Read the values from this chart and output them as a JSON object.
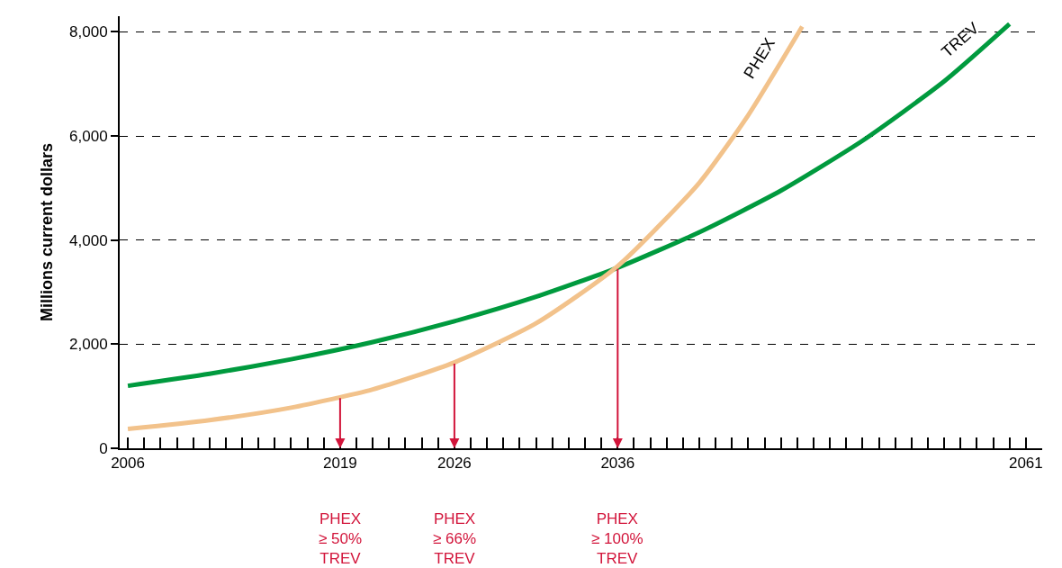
{
  "chart_data": {
    "type": "line",
    "ylabel": "Millions current dollars",
    "xlim": [
      2005.5,
      2062
    ],
    "ylim": [
      0,
      8300
    ],
    "xticks": [
      2006,
      {
        "value": 2007,
        "label": null
      },
      {
        "value": 2008,
        "label": null
      },
      {
        "value": 2009,
        "label": null
      },
      {
        "value": 2010,
        "label": null
      },
      {
        "value": 2011,
        "label": null
      },
      {
        "value": 2012,
        "label": null
      },
      {
        "value": 2013,
        "label": null
      },
      {
        "value": 2014,
        "label": null
      },
      {
        "value": 2015,
        "label": null
      },
      {
        "value": 2016,
        "label": null
      },
      {
        "value": 2017,
        "label": null
      },
      {
        "value": 2018,
        "label": null
      },
      2019,
      {
        "value": 2020,
        "label": null
      },
      {
        "value": 2021,
        "label": null
      },
      {
        "value": 2022,
        "label": null
      },
      {
        "value": 2023,
        "label": null
      },
      {
        "value": 2024,
        "label": null
      },
      {
        "value": 2025,
        "label": null
      },
      2026,
      {
        "value": 2027,
        "label": null
      },
      {
        "value": 2028,
        "label": null
      },
      {
        "value": 2029,
        "label": null
      },
      {
        "value": 2030,
        "label": null
      },
      {
        "value": 2031,
        "label": null
      },
      {
        "value": 2032,
        "label": null
      },
      {
        "value": 2033,
        "label": null
      },
      {
        "value": 2034,
        "label": null
      },
      {
        "value": 2035,
        "label": null
      },
      2036,
      {
        "value": 2037,
        "label": null
      },
      {
        "value": 2038,
        "label": null
      },
      {
        "value": 2039,
        "label": null
      },
      {
        "value": 2040,
        "label": null
      },
      {
        "value": 2041,
        "label": null
      },
      {
        "value": 2042,
        "label": null
      },
      {
        "value": 2043,
        "label": null
      },
      {
        "value": 2044,
        "label": null
      },
      {
        "value": 2045,
        "label": null
      },
      {
        "value": 2046,
        "label": null
      },
      {
        "value": 2047,
        "label": null
      },
      {
        "value": 2048,
        "label": null
      },
      {
        "value": 2049,
        "label": null
      },
      {
        "value": 2050,
        "label": null
      },
      {
        "value": 2051,
        "label": null
      },
      {
        "value": 2052,
        "label": null
      },
      {
        "value": 2053,
        "label": null
      },
      {
        "value": 2054,
        "label": null
      },
      {
        "value": 2055,
        "label": null
      },
      {
        "value": 2056,
        "label": null
      },
      {
        "value": 2057,
        "label": null
      },
      {
        "value": 2058,
        "label": null
      },
      {
        "value": 2059,
        "label": null
      },
      {
        "value": 2060,
        "label": null
      },
      2061
    ],
    "yticks": [
      0,
      {
        "value": 2000,
        "label": "2,000"
      },
      {
        "value": 4000,
        "label": "4,000"
      },
      {
        "value": 6000,
        "label": "6,000"
      },
      {
        "value": 8000,
        "label": "8,000"
      }
    ],
    "grid": "y",
    "legend": false,
    "marker": "none",
    "line_style": "solid",
    "series": [
      {
        "name": "TREV",
        "color": "#009a3e",
        "x": [
          2006,
          2011,
          2016,
          2021,
          2026,
          2031,
          2036,
          2041,
          2046,
          2051,
          2056,
          2060
        ],
        "values": [
          1200,
          1430,
          1710,
          2040,
          2440,
          2910,
          3470,
          4150,
          4950,
          5910,
          7050,
          8150
        ]
      },
      {
        "name": "PHEX",
        "color": "#f2c28b",
        "x": [
          2006,
          2011,
          2016,
          2021,
          2026,
          2031,
          2036,
          2041,
          2044,
          2047.3
        ],
        "values": [
          370,
          540,
          780,
          1130,
          1650,
          2400,
          3500,
          5100,
          6400,
          8100
        ]
      }
    ],
    "ref_lines": [
      {
        "axis": "x",
        "value": 2019,
        "label": "PHEX\n≥ 50%\nTREV",
        "color": "#d2143a"
      },
      {
        "axis": "x",
        "value": 2026,
        "label": "PHEX\n≥ 66%\nTREV",
        "color": "#d2143a"
      },
      {
        "axis": "x",
        "value": 2036,
        "label": "PHEX\n≥ 100%\nTREV",
        "color": "#d2143a"
      }
    ]
  }
}
